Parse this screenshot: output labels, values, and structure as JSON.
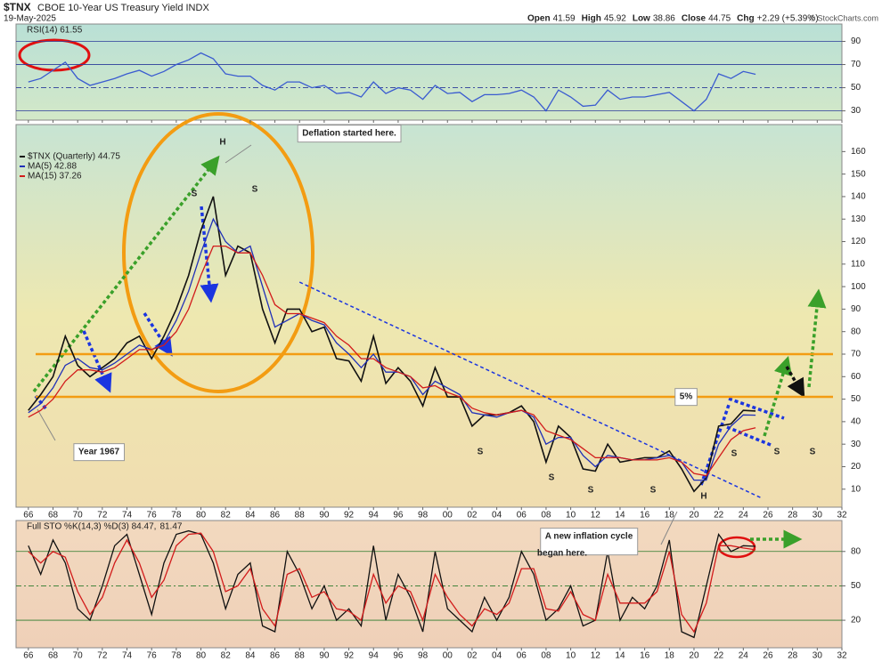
{
  "header": {
    "symbol": "$TNX",
    "name": "CBOE 10-Year US Treasury Yield INDX",
    "date": "19-May-2025",
    "quote": [
      {
        "label": "Open",
        "value": 41.59
      },
      {
        "label": "High",
        "value": 45.92
      },
      {
        "label": "Low",
        "value": 38.86
      },
      {
        "label": "Close",
        "value": 44.75
      },
      {
        "label": "Chg",
        "value": "+2.29 (+5.39%)"
      }
    ],
    "watermark": "© StockCharts.com"
  },
  "chart_data": [
    {
      "type": "line",
      "title": "RSI(14) 61.55",
      "xlim": [
        1965,
        2032
      ],
      "ylim": [
        22,
        105
      ],
      "yticks": [
        30,
        50,
        70,
        90
      ],
      "grid": true,
      "x": [
        1966,
        1967,
        1968,
        1969,
        1970,
        1971,
        1972,
        1973,
        1974,
        1975,
        1976,
        1977,
        1978,
        1979,
        1980,
        1981,
        1982,
        1983,
        1984,
        1985,
        1986,
        1987,
        1988,
        1989,
        1990,
        1991,
        1992,
        1993,
        1994,
        1995,
        1996,
        1997,
        1998,
        1999,
        2000,
        2001,
        2002,
        2003,
        2004,
        2005,
        2006,
        2007,
        2008,
        2009,
        2010,
        2011,
        2012,
        2013,
        2014,
        2015,
        2016,
        2017,
        2018,
        2019,
        2020,
        2021,
        2022,
        2023,
        2024,
        2025
      ],
      "series": [
        {
          "name": "RSI(14)",
          "color": "#3a5bd0",
          "values": [
            55,
            58,
            65,
            72,
            58,
            52,
            55,
            58,
            62,
            65,
            60,
            64,
            70,
            74,
            80,
            75,
            62,
            60,
            60,
            52,
            48,
            55,
            55,
            50,
            52,
            45,
            46,
            42,
            55,
            45,
            50,
            48,
            40,
            52,
            45,
            46,
            38,
            44,
            44,
            45,
            48,
            42,
            30,
            48,
            42,
            34,
            35,
            48,
            40,
            42,
            42,
            44,
            46,
            38,
            30,
            40,
            62,
            58,
            64,
            61.55
          ]
        }
      ]
    },
    {
      "type": "line",
      "xlim": [
        1965,
        2032
      ],
      "ylim": [
        2,
        172
      ],
      "yticks": [
        10,
        20,
        30,
        40,
        50,
        60,
        70,
        80,
        90,
        100,
        110,
        120,
        130,
        140,
        150,
        160
      ],
      "xticks": [
        {
          "value": 1966,
          "label": "66"
        },
        {
          "value": 1968,
          "label": "68"
        },
        {
          "value": 1970,
          "label": "70"
        },
        {
          "value": 1972,
          "label": "72"
        },
        {
          "value": 1974,
          "label": "74"
        },
        {
          "value": 1976,
          "label": "76"
        },
        {
          "value": 1978,
          "label": "78"
        },
        {
          "value": 1980,
          "label": "80"
        },
        {
          "value": 1982,
          "label": "82"
        },
        {
          "value": 1984,
          "label": "84"
        },
        {
          "value": 1986,
          "label": "86"
        },
        {
          "value": 1988,
          "label": "88"
        },
        {
          "value": 1990,
          "label": "90"
        },
        {
          "value": 1992,
          "label": "92"
        },
        {
          "value": 1994,
          "label": "94"
        },
        {
          "value": 1996,
          "label": "96"
        },
        {
          "value": 1998,
          "label": "98"
        },
        {
          "value": 2000,
          "label": "00"
        },
        {
          "value": 2002,
          "label": "02"
        },
        {
          "value": 2004,
          "label": "04"
        },
        {
          "value": 2006,
          "label": "06"
        },
        {
          "value": 2008,
          "label": "08"
        },
        {
          "value": 2010,
          "label": "10"
        },
        {
          "value": 2012,
          "label": "12"
        },
        {
          "value": 2014,
          "label": "14"
        },
        {
          "value": 2016,
          "label": "16"
        },
        {
          "value": 2018,
          "label": "18"
        },
        {
          "value": 2020,
          "label": "20"
        },
        {
          "value": 2022,
          "label": "22"
        },
        {
          "value": 2024,
          "label": "24"
        },
        {
          "value": 2026,
          "label": "26"
        },
        {
          "value": 2028,
          "label": "28"
        },
        {
          "value": 2030,
          "label": "30"
        },
        {
          "value": 2032,
          "label": "32"
        }
      ],
      "x": [
        1966,
        1967,
        1968,
        1969,
        1970,
        1971,
        1972,
        1973,
        1974,
        1975,
        1976,
        1977,
        1978,
        1979,
        1980,
        1981,
        1982,
        1983,
        1984,
        1985,
        1986,
        1987,
        1988,
        1989,
        1990,
        1991,
        1992,
        1993,
        1994,
        1995,
        1996,
        1997,
        1998,
        1999,
        2000,
        2001,
        2002,
        2003,
        2004,
        2005,
        2006,
        2007,
        2008,
        2009,
        2010,
        2011,
        2012,
        2013,
        2014,
        2015,
        2016,
        2017,
        2018,
        2019,
        2020,
        2021,
        2022,
        2023,
        2024,
        2025
      ],
      "series": [
        {
          "name": "$TNX (Quarterly) 44.75",
          "color": "#111111",
          "values": [
            45,
            52,
            60,
            78,
            65,
            60,
            64,
            68,
            75,
            78,
            68,
            78,
            90,
            105,
            125,
            140,
            105,
            118,
            115,
            90,
            75,
            90,
            90,
            80,
            82,
            68,
            67,
            58,
            78,
            57,
            64,
            58,
            47,
            64,
            51,
            51,
            38,
            43,
            43,
            44,
            47,
            40,
            22,
            38,
            33,
            19,
            18,
            30,
            22,
            23,
            24,
            24,
            27,
            19,
            9,
            15,
            38,
            39,
            45,
            44.75
          ]
        },
        {
          "name": "MA(5) 42.88",
          "color": "#1f2fb8",
          "values": [
            44,
            48,
            55,
            65,
            68,
            64,
            63,
            66,
            70,
            74,
            72,
            75,
            85,
            98,
            115,
            130,
            120,
            115,
            118,
            100,
            82,
            85,
            88,
            85,
            83,
            75,
            70,
            64,
            70,
            62,
            62,
            60,
            52,
            58,
            55,
            52,
            44,
            43,
            42,
            44,
            45,
            42,
            30,
            33,
            33,
            25,
            20,
            25,
            24,
            23,
            23,
            24,
            25,
            22,
            14,
            14,
            30,
            38,
            43,
            42.88
          ]
        },
        {
          "name": "MA(15) 37.26",
          "color": "#d21b1b",
          "values": [
            42,
            45,
            50,
            58,
            63,
            63,
            62,
            64,
            68,
            72,
            72,
            74,
            80,
            90,
            105,
            118,
            118,
            115,
            115,
            105,
            92,
            88,
            88,
            86,
            84,
            78,
            74,
            68,
            68,
            64,
            62,
            60,
            55,
            56,
            53,
            51,
            46,
            44,
            43,
            44,
            45,
            43,
            36,
            34,
            32,
            28,
            24,
            24,
            24,
            23,
            23,
            23,
            24,
            22,
            17,
            16,
            24,
            32,
            36,
            37.26
          ]
        }
      ],
      "hlines": [
        {
          "value": 70,
          "color": "#f39c12"
        },
        {
          "value": 51,
          "color": "#f39c12"
        }
      ],
      "trendlines": [
        {
          "x": [
            1988,
            2025.5
          ],
          "values": [
            102,
            6
          ],
          "color": "#1b35e0"
        }
      ],
      "annotations": [
        "H",
        "S",
        "S",
        "Deflation started here.",
        "Year 1967",
        "5%",
        "S",
        "S",
        "S",
        "S",
        "S",
        "S",
        "S",
        "H",
        "A new inflation cycle",
        "began here."
      ]
    },
    {
      "type": "line",
      "title": "Full STO %K(14,3) %D(3) 84.47,",
      "title_extra": "81.47",
      "xlim": [
        1965,
        2032
      ],
      "ylim": [
        -4,
        107
      ],
      "yticks": [
        20,
        50,
        80
      ],
      "grid": true,
      "x": [
        1966,
        1967,
        1968,
        1969,
        1970,
        1971,
        1972,
        1973,
        1974,
        1975,
        1976,
        1977,
        1978,
        1979,
        1980,
        1981,
        1982,
        1983,
        1984,
        1985,
        1986,
        1987,
        1988,
        1989,
        1990,
        1991,
        1992,
        1993,
        1994,
        1995,
        1996,
        1997,
        1998,
        1999,
        2000,
        2001,
        2002,
        2003,
        2004,
        2005,
        2006,
        2007,
        2008,
        2009,
        2010,
        2011,
        2012,
        2013,
        2014,
        2015,
        2016,
        2017,
        2018,
        2019,
        2020,
        2021,
        2022,
        2023,
        2024,
        2025
      ],
      "series": [
        {
          "name": "%K(14,3)",
          "color": "#111111",
          "values": [
            85,
            60,
            90,
            70,
            30,
            20,
            50,
            85,
            95,
            60,
            25,
            70,
            95,
            98,
            95,
            70,
            30,
            60,
            70,
            15,
            10,
            80,
            60,
            30,
            50,
            20,
            30,
            15,
            85,
            20,
            60,
            40,
            10,
            80,
            30,
            20,
            10,
            40,
            20,
            40,
            80,
            60,
            20,
            30,
            50,
            15,
            20,
            80,
            20,
            40,
            30,
            50,
            90,
            10,
            5,
            50,
            95,
            80,
            85,
            84.47
          ]
        },
        {
          "name": "%D(3)",
          "color": "#d21b1b",
          "values": [
            80,
            70,
            80,
            75,
            45,
            25,
            40,
            70,
            90,
            70,
            40,
            55,
            85,
            95,
            96,
            80,
            45,
            50,
            65,
            30,
            15,
            60,
            65,
            40,
            45,
            30,
            28,
            20,
            60,
            35,
            50,
            45,
            20,
            60,
            40,
            25,
            15,
            30,
            25,
            35,
            65,
            65,
            30,
            28,
            45,
            25,
            20,
            60,
            35,
            35,
            35,
            45,
            80,
            25,
            10,
            35,
            85,
            85,
            83,
            81.47
          ]
        }
      ]
    }
  ]
}
